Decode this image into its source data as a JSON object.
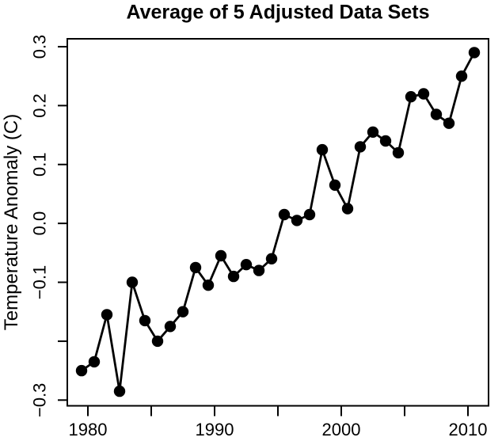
{
  "chart_data": {
    "type": "line",
    "title": "Average of 5 Adjusted Data Sets",
    "ylabel": "Temperature Anomaly (C)",
    "xlabel": "",
    "x": [
      1979.5,
      1980.5,
      1981.5,
      1982.5,
      1983.5,
      1984.5,
      1985.5,
      1986.5,
      1987.5,
      1988.5,
      1989.5,
      1990.5,
      1991.5,
      1992.5,
      1993.5,
      1994.5,
      1995.5,
      1996.5,
      1997.5,
      1998.5,
      1999.5,
      2000.5,
      2001.5,
      2002.5,
      2003.5,
      2004.5,
      2005.5,
      2006.5,
      2007.5,
      2008.5,
      2009.5,
      2010.5
    ],
    "values": [
      -0.25,
      -0.235,
      -0.155,
      -0.285,
      -0.1,
      -0.165,
      -0.2,
      -0.175,
      -0.15,
      -0.075,
      -0.105,
      -0.055,
      -0.09,
      -0.07,
      -0.08,
      -0.06,
      0.015,
      0.005,
      0.015,
      0.125,
      0.065,
      0.025,
      0.13,
      0.155,
      0.14,
      0.12,
      0.215,
      0.22,
      0.185,
      0.17,
      0.25,
      0.29
    ],
    "marker": "filled-circle",
    "line_color": "#000000",
    "marker_color": "#000000",
    "background": "#ffffff",
    "grid": false,
    "legend": null,
    "xlim": [
      1978.375,
      2011.625
    ],
    "ylim": [
      -0.3097,
      0.3134
    ],
    "x_ticks": {
      "positions": [
        1980,
        1985,
        1990,
        1995,
        2000,
        2005,
        2010
      ],
      "labels": [
        "1980",
        "",
        "1990",
        "",
        "2000",
        "",
        "2010"
      ]
    },
    "y_ticks": {
      "positions": [
        -0.3,
        -0.2,
        -0.1,
        0.0,
        0.1,
        0.2,
        0.3
      ],
      "labels": [
        "−0.3",
        "",
        "−0.1",
        "0.0",
        "0.1",
        "0.2",
        "0.3"
      ]
    }
  }
}
